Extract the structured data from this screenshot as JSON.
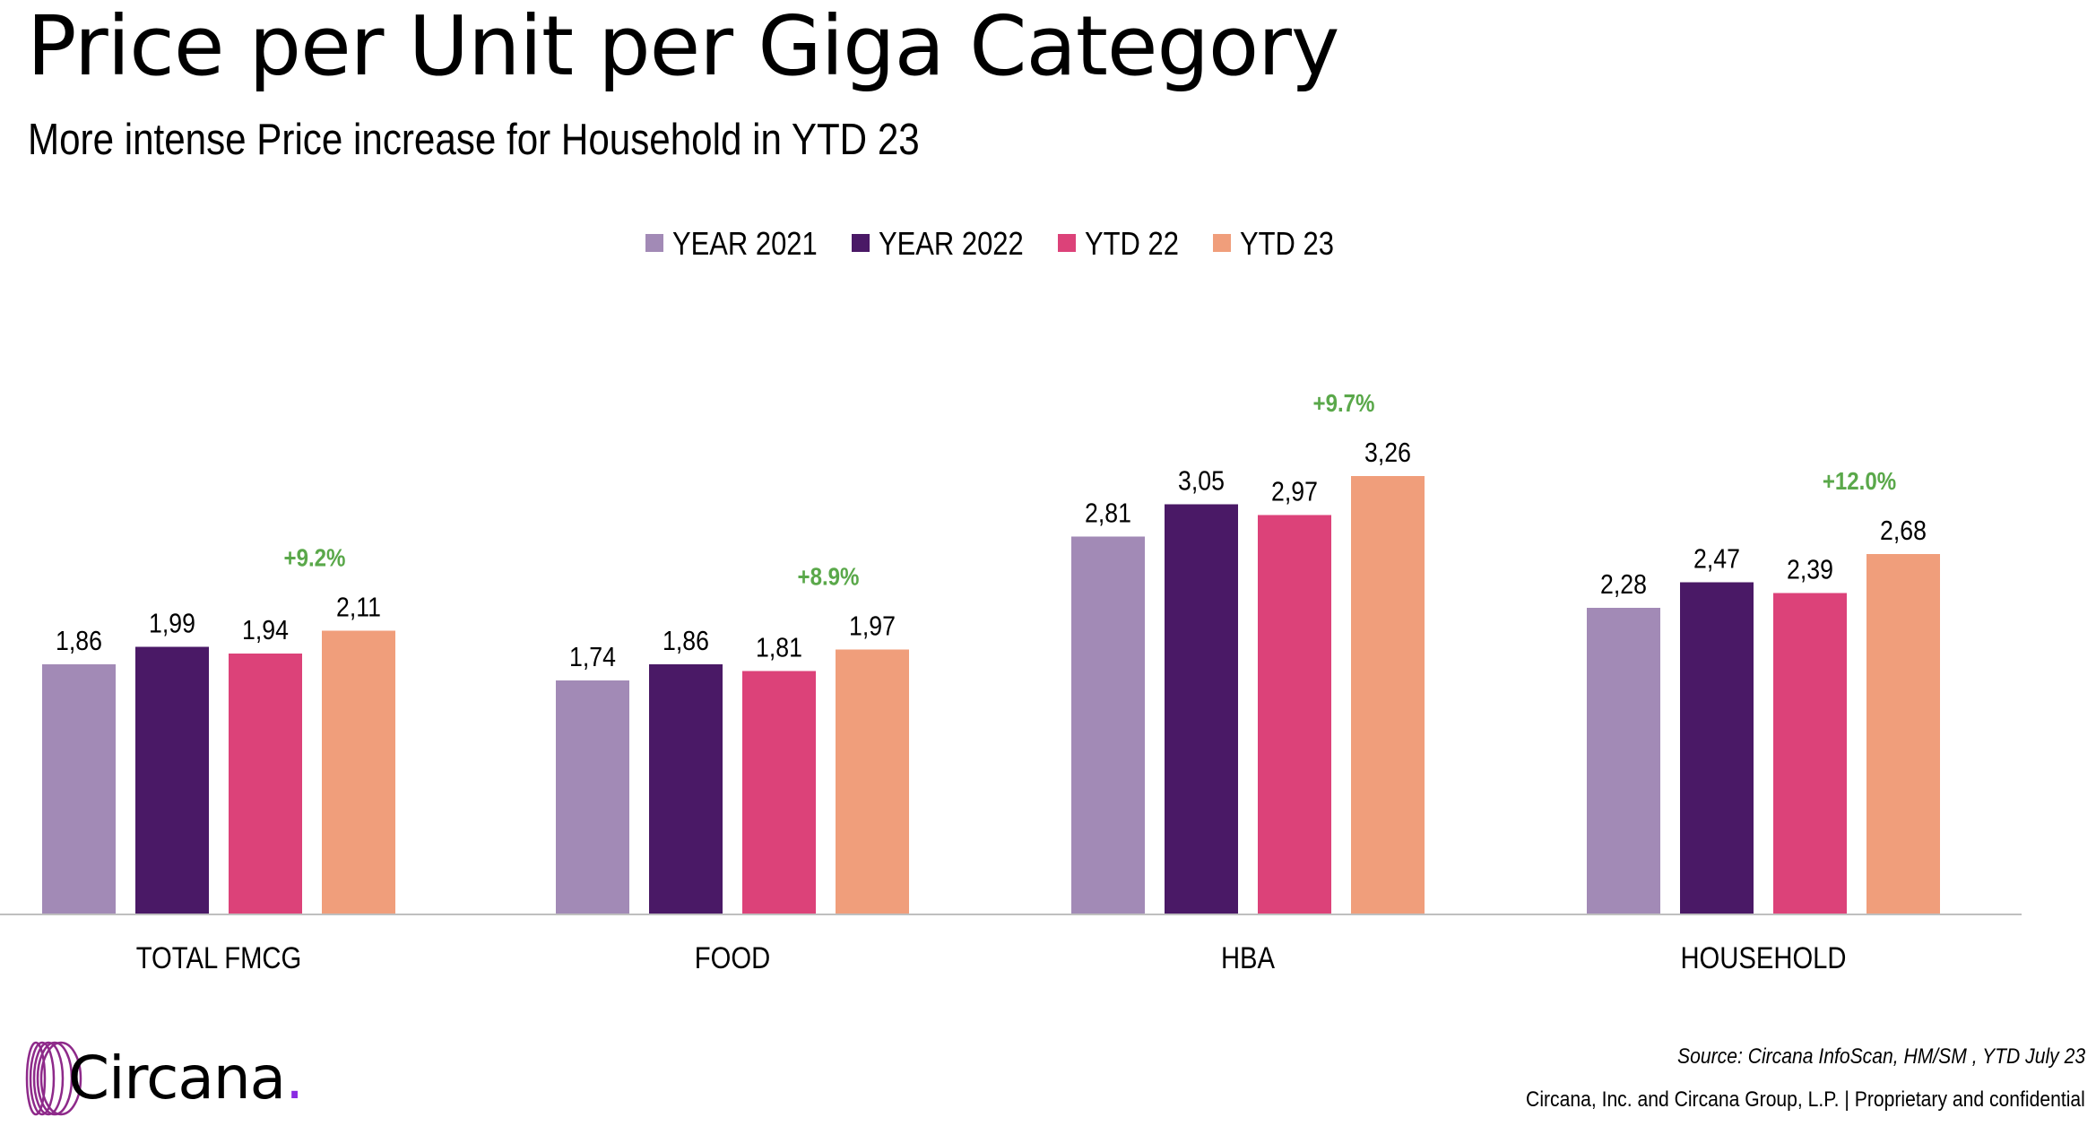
{
  "header": {
    "title": "Price per Unit per Giga Category",
    "subtitle": "More intense Price increase for Household in YTD 23"
  },
  "chart_data": {
    "type": "bar",
    "title": "Price per Unit per Giga Category",
    "subtitle": "More intense Price increase for Household in YTD 23",
    "xlabel": "",
    "ylabel": "",
    "ylim": [
      0,
      3.6
    ],
    "grid": false,
    "legend_position": "top-center",
    "categories": [
      "TOTAL FMCG",
      "FOOD",
      "HBA",
      "HOUSEHOLD"
    ],
    "series": [
      {
        "name": "YEAR 2021",
        "color": "#a28ab6",
        "values": [
          1.86,
          1.74,
          2.81,
          2.28
        ],
        "labels": [
          "1,86",
          "1,74",
          "2,81",
          "2,28"
        ]
      },
      {
        "name": "YEAR 2022",
        "color": "#4a1966",
        "values": [
          1.99,
          1.86,
          3.05,
          2.47
        ],
        "labels": [
          "1,99",
          "1,86",
          "3,05",
          "2,47"
        ]
      },
      {
        "name": "YTD 22",
        "color": "#dc4279",
        "values": [
          1.94,
          1.81,
          2.97,
          2.39
        ],
        "labels": [
          "1,94",
          "1,81",
          "2,97",
          "2,39"
        ]
      },
      {
        "name": "YTD 23",
        "color": "#f09e7b",
        "values": [
          2.11,
          1.97,
          3.26,
          2.68
        ],
        "labels": [
          "2,11",
          "1,97",
          "3,26",
          "2,68"
        ]
      }
    ],
    "annotations": {
      "color": "#5aa84a",
      "labels": [
        "+9.2%",
        "+8.9%",
        "+9.7%",
        "+12.0%"
      ]
    }
  },
  "logo": {
    "name": "Circana",
    "dot": "."
  },
  "footer": {
    "source": "Source: Circana InfoScan, HM/SM , YTD July 23",
    "legal": "Circana, Inc. and Circana Group, L.P. |  Proprietary and confidential"
  }
}
